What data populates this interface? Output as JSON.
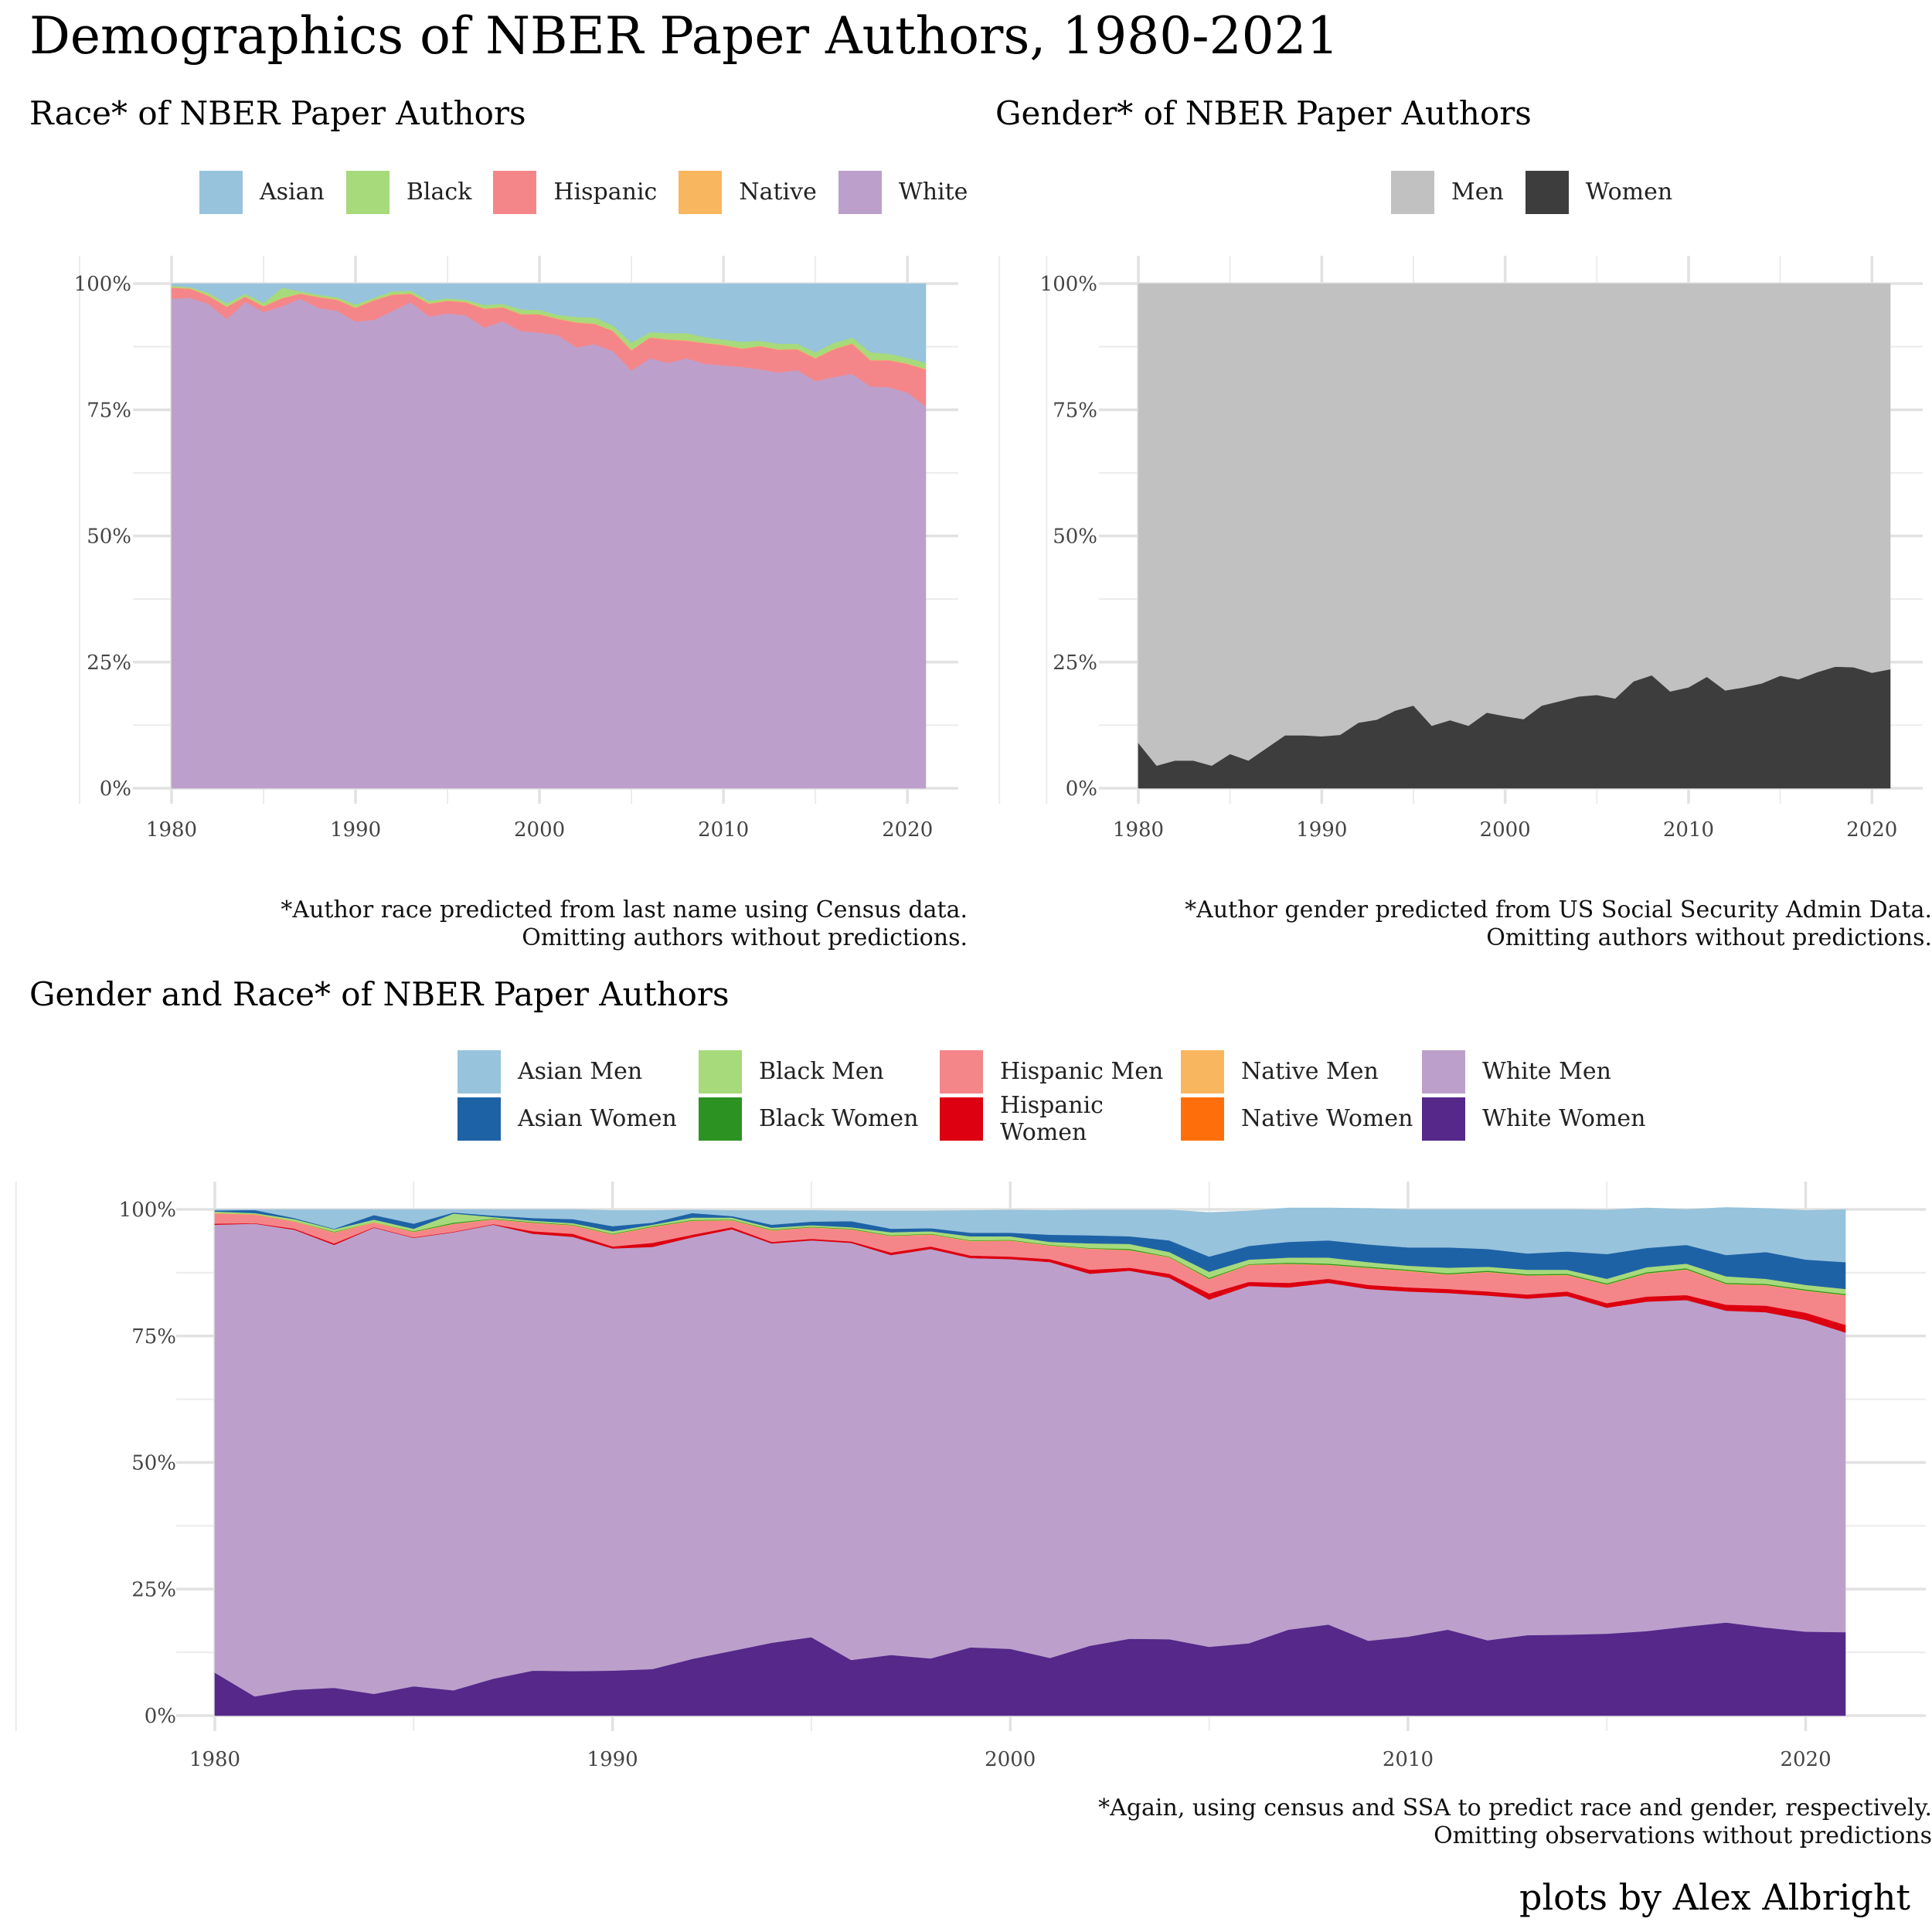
{
  "title": "Demographics of NBER Paper Authors, 1980-2021",
  "byline": "plots by Alex Albright",
  "panels": {
    "race": {
      "title": "Race* of NBER Paper Authors",
      "caption_line1": "*Author race predicted from last name using Census data.",
      "caption_line2": "Omitting authors without predictions."
    },
    "gender": {
      "title": "Gender* of NBER Paper Authors",
      "caption_line1": "*Author gender predicted from US Social Security Admin Data.",
      "caption_line2": "Omitting authors without predictions."
    },
    "combined": {
      "title": "Gender and Race* of NBER Paper Authors",
      "caption_line1": "*Again, using census and SSA to predict race and gender, respectively.",
      "caption_line2": "Omitting observations without predictions"
    }
  },
  "chart_data": [
    {
      "type": "area",
      "stacked": "percent",
      "title": "Race* of NBER Paper Authors",
      "x": [
        1980,
        1981,
        1982,
        1983,
        1984,
        1985,
        1986,
        1987,
        1988,
        1989,
        1990,
        1991,
        1992,
        1993,
        1994,
        1995,
        1996,
        1997,
        1998,
        1999,
        2000,
        2001,
        2002,
        2003,
        2004,
        2005,
        2006,
        2007,
        2008,
        2009,
        2010,
        2011,
        2012,
        2013,
        2014,
        2015,
        2016,
        2017,
        2018,
        2019,
        2020,
        2021
      ],
      "xlim": [
        1980,
        2021
      ],
      "xticks": [
        1980,
        1990,
        2000,
        2010,
        2020
      ],
      "ylim": [
        0,
        100
      ],
      "yticks": [
        0,
        25,
        50,
        75,
        100
      ],
      "ytick_labels": [
        "0%",
        "25%",
        "50%",
        "75%",
        "100%"
      ],
      "legend_position": "top",
      "series": [
        {
          "name": "White",
          "color": "#BCA0CB",
          "values": [
            97.0,
            97.2,
            96.0,
            93.0,
            96.4,
            94.4,
            95.5,
            97.0,
            95.2,
            94.6,
            92.5,
            92.8,
            94.6,
            96.3,
            93.5,
            94.1,
            93.7,
            91.3,
            92.5,
            90.6,
            90.3,
            89.8,
            87.4,
            88.0,
            86.6,
            82.8,
            85.2,
            84.3,
            85.2,
            84.1,
            83.8,
            83.5,
            83.0,
            82.4,
            82.9,
            80.7,
            81.5,
            82.1,
            79.6,
            79.5,
            78.4,
            75.7
          ]
        },
        {
          "name": "Hispanic",
          "color": "#F4868A",
          "values": [
            2.2,
            1.8,
            1.6,
            2.4,
            1.0,
            1.1,
            1.6,
            1.0,
            2.1,
            2.2,
            2.7,
            3.9,
            3.2,
            1.7,
            2.5,
            2.5,
            2.6,
            3.7,
            2.8,
            3.3,
            3.6,
            3.2,
            4.9,
            4.0,
            4.0,
            4.0,
            4.1,
            4.6,
            3.5,
            4.1,
            4.0,
            3.6,
            4.6,
            4.5,
            4.1,
            4.5,
            5.5,
            6.0,
            5.2,
            5.3,
            5.7,
            7.3
          ]
        },
        {
          "name": "Native",
          "color": "#F8B65E",
          "values": [
            0.1,
            0.1,
            0.1,
            0.1,
            0.1,
            0.1,
            0.1,
            0.1,
            0.1,
            0.1,
            0.1,
            0.1,
            0.1,
            0.1,
            0.1,
            0.1,
            0.1,
            0.1,
            0.1,
            0.1,
            0.1,
            0.1,
            0.1,
            0.1,
            0.1,
            0.1,
            0.1,
            0.1,
            0.1,
            0.1,
            0.1,
            0.1,
            0.1,
            0.1,
            0.1,
            0.1,
            0.1,
            0.1,
            0.1,
            0.1,
            0.1,
            0.1
          ]
        },
        {
          "name": "Black",
          "color": "#A6DA7B",
          "values": [
            0.3,
            0.2,
            0.5,
            0.6,
            0.5,
            0.6,
            2.0,
            0.4,
            0.4,
            0.4,
            0.6,
            0.4,
            0.6,
            0.5,
            0.5,
            0.4,
            0.4,
            0.7,
            0.6,
            0.9,
            0.8,
            0.7,
            1.0,
            1.2,
            1.0,
            1.4,
            1.0,
            1.2,
            1.4,
            1.1,
            1.0,
            1.3,
            1.0,
            1.1,
            1.0,
            1.1,
            1.2,
            1.1,
            1.5,
            1.2,
            1.1,
            1.2
          ]
        },
        {
          "name": "Asian",
          "color": "#97C3DC",
          "values": [
            0.4,
            0.7,
            1.8,
            3.9,
            2.0,
            3.8,
            0.8,
            1.5,
            2.2,
            2.7,
            4.1,
            2.8,
            1.5,
            1.4,
            3.4,
            2.9,
            3.2,
            4.2,
            4.0,
            5.1,
            5.2,
            6.2,
            6.6,
            6.7,
            8.3,
            11.7,
            9.6,
            9.8,
            9.8,
            10.6,
            11.1,
            11.5,
            11.3,
            11.9,
            11.9,
            13.6,
            11.7,
            10.7,
            13.6,
            13.9,
            14.7,
            15.7
          ]
        }
      ]
    },
    {
      "type": "area",
      "stacked": "percent",
      "title": "Gender* of NBER Paper Authors",
      "x": [
        1980,
        1981,
        1982,
        1983,
        1984,
        1985,
        1986,
        1987,
        1988,
        1989,
        1990,
        1991,
        1992,
        1993,
        1994,
        1995,
        1996,
        1997,
        1998,
        1999,
        2000,
        2001,
        2002,
        2003,
        2004,
        2005,
        2006,
        2007,
        2008,
        2009,
        2010,
        2011,
        2012,
        2013,
        2014,
        2015,
        2016,
        2017,
        2018,
        2019,
        2020,
        2021
      ],
      "xlim": [
        1980,
        2021
      ],
      "xticks": [
        1980,
        1990,
        2000,
        2010,
        2020
      ],
      "ylim": [
        0,
        100
      ],
      "yticks": [
        0,
        25,
        50,
        75,
        100
      ],
      "ytick_labels": [
        "0%",
        "25%",
        "50%",
        "75%",
        "100%"
      ],
      "legend_position": "top",
      "series": [
        {
          "name": "Women",
          "color": "#3D3D3D",
          "values": [
            9.0,
            4.5,
            5.5,
            5.5,
            4.5,
            6.8,
            5.5,
            8.0,
            10.5,
            10.5,
            10.3,
            10.6,
            13.0,
            13.6,
            15.4,
            16.4,
            12.4,
            13.5,
            12.4,
            15.0,
            14.3,
            13.7,
            16.4,
            17.3,
            18.2,
            18.5,
            17.8,
            21.2,
            22.4,
            19.2,
            20.0,
            22.1,
            19.4,
            20.0,
            20.8,
            22.3,
            21.6,
            23.0,
            24.1,
            24.0,
            22.9,
            23.6
          ]
        },
        {
          "name": "Men",
          "color": "#C1C1C1",
          "values": [
            91.0,
            95.5,
            94.5,
            94.5,
            95.5,
            93.2,
            94.5,
            92.0,
            89.5,
            89.5,
            89.7,
            89.4,
            87.0,
            86.4,
            84.6,
            83.6,
            87.6,
            86.5,
            87.6,
            85.0,
            85.7,
            86.3,
            83.6,
            82.7,
            81.8,
            81.5,
            82.2,
            78.8,
            77.6,
            80.8,
            80.0,
            77.9,
            80.6,
            80.0,
            79.2,
            77.7,
            78.4,
            77.0,
            75.9,
            76.0,
            77.1,
            76.4
          ]
        }
      ]
    },
    {
      "type": "area",
      "stacked": "percent",
      "title": "Gender and Race* of NBER Paper Authors",
      "x": [
        1980,
        1981,
        1982,
        1983,
        1984,
        1985,
        1986,
        1987,
        1988,
        1989,
        1990,
        1991,
        1992,
        1993,
        1994,
        1995,
        1996,
        1997,
        1998,
        1999,
        2000,
        2001,
        2002,
        2003,
        2004,
        2005,
        2006,
        2007,
        2008,
        2009,
        2010,
        2011,
        2012,
        2013,
        2014,
        2015,
        2016,
        2017,
        2018,
        2019,
        2020,
        2021
      ],
      "xlim": [
        1980,
        2021
      ],
      "xticks": [
        1980,
        1990,
        2000,
        2010,
        2020
      ],
      "ylim": [
        0,
        100
      ],
      "yticks": [
        0,
        25,
        50,
        75,
        100
      ],
      "ytick_labels": [
        "0%",
        "25%",
        "50%",
        "75%",
        "100%"
      ],
      "legend_position": "top",
      "series": [
        {
          "name": "White Women",
          "color": "#55288A",
          "values": [
            8.5,
            3.8,
            5.1,
            5.5,
            4.3,
            5.8,
            5.0,
            7.3,
            8.9,
            8.8,
            8.9,
            9.2,
            11.2,
            12.8,
            14.4,
            15.5,
            11.0,
            12.0,
            11.3,
            13.5,
            13.2,
            11.4,
            13.8,
            15.2,
            15.1,
            13.6,
            14.3,
            17.0,
            18.0,
            14.8,
            15.6,
            17.0,
            14.9,
            15.9,
            16.0,
            16.2,
            16.7,
            17.6,
            18.4,
            17.4,
            16.6,
            16.5
          ]
        },
        {
          "name": "White Men",
          "color": "#BCA0CB",
          "values": [
            88.5,
            93.4,
            90.9,
            87.5,
            92.1,
            88.6,
            90.5,
            89.7,
            86.3,
            85.8,
            83.4,
            83.4,
            83.3,
            83.3,
            78.9,
            78.4,
            82.4,
            79.0,
            80.9,
            76.9,
            77.0,
            78.2,
            73.5,
            72.7,
            71.4,
            68.6,
            70.6,
            67.6,
            67.5,
            69.5,
            68.2,
            66.5,
            68.1,
            66.5,
            66.9,
            64.4,
            65.1,
            64.5,
            61.6,
            62.3,
            61.6,
            59.2
          ]
        },
        {
          "name": "Hispanic Women",
          "color": "#DC0010",
          "values": [
            0.2,
            0.1,
            0.2,
            0.3,
            0.1,
            0.1,
            0.1,
            0.1,
            0.5,
            0.6,
            0.4,
            0.8,
            0.5,
            0.4,
            0.3,
            0.3,
            0.3,
            0.5,
            0.5,
            0.5,
            0.5,
            0.6,
            0.8,
            0.6,
            0.8,
            1.2,
            0.8,
            0.9,
            0.8,
            0.8,
            0.8,
            0.8,
            0.8,
            0.8,
            0.9,
            0.9,
            1.0,
            1.0,
            1.2,
            1.3,
            1.4,
            1.5
          ]
        },
        {
          "name": "Hispanic Men",
          "color": "#F4868A",
          "values": [
            2.0,
            1.7,
            1.4,
            2.1,
            0.9,
            1.0,
            1.5,
            0.9,
            1.6,
            1.6,
            2.3,
            3.1,
            2.7,
            1.3,
            2.2,
            2.2,
            2.3,
            3.2,
            2.3,
            2.8,
            3.1,
            2.6,
            4.1,
            3.4,
            3.2,
            2.8,
            3.3,
            3.7,
            2.7,
            3.3,
            3.2,
            2.8,
            3.8,
            3.7,
            3.2,
            3.6,
            4.5,
            5.0,
            4.0,
            4.0,
            4.3,
            5.8
          ]
        },
        {
          "name": "Native Women",
          "color": "#FE6E0B",
          "values": [
            0.0,
            0.0,
            0.0,
            0.0,
            0.0,
            0.0,
            0.0,
            0.0,
            0.0,
            0.0,
            0.0,
            0.0,
            0.0,
            0.0,
            0.0,
            0.0,
            0.0,
            0.0,
            0.0,
            0.0,
            0.0,
            0.0,
            0.0,
            0.0,
            0.0,
            0.0,
            0.0,
            0.0,
            0.0,
            0.0,
            0.0,
            0.0,
            0.0,
            0.0,
            0.0,
            0.0,
            0.0,
            0.0,
            0.0,
            0.0,
            0.0,
            0.0
          ]
        },
        {
          "name": "Native Men",
          "color": "#F8B65E",
          "values": [
            0.1,
            0.1,
            0.1,
            0.1,
            0.1,
            0.1,
            0.1,
            0.1,
            0.1,
            0.1,
            0.1,
            0.1,
            0.1,
            0.1,
            0.1,
            0.1,
            0.1,
            0.1,
            0.1,
            0.1,
            0.1,
            0.1,
            0.1,
            0.1,
            0.1,
            0.1,
            0.1,
            0.1,
            0.1,
            0.1,
            0.1,
            0.1,
            0.1,
            0.1,
            0.1,
            0.1,
            0.1,
            0.1,
            0.1,
            0.1,
            0.1,
            0.1
          ]
        },
        {
          "name": "Black Women",
          "color": "#2C9323",
          "values": [
            0.0,
            0.0,
            0.0,
            0.1,
            0.0,
            0.1,
            0.2,
            0.1,
            0.1,
            0.1,
            0.1,
            0.1,
            0.1,
            0.1,
            0.1,
            0.1,
            0.1,
            0.1,
            0.1,
            0.1,
            0.1,
            0.1,
            0.1,
            0.2,
            0.1,
            0.2,
            0.1,
            0.2,
            0.2,
            0.2,
            0.2,
            0.2,
            0.2,
            0.2,
            0.2,
            0.2,
            0.2,
            0.2,
            0.2,
            0.2,
            0.2,
            0.2
          ]
        },
        {
          "name": "Black Men",
          "color": "#A6DA7B",
          "values": [
            0.3,
            0.2,
            0.4,
            0.5,
            0.5,
            0.5,
            1.8,
            0.3,
            0.3,
            0.3,
            0.5,
            0.3,
            0.5,
            0.4,
            0.4,
            0.3,
            0.3,
            0.6,
            0.5,
            0.8,
            0.7,
            0.6,
            0.9,
            1.0,
            0.9,
            1.2,
            0.9,
            1.0,
            1.2,
            0.9,
            0.8,
            1.1,
            0.8,
            0.9,
            0.8,
            0.9,
            1.0,
            0.9,
            1.3,
            1.0,
            0.9,
            1.0
          ]
        },
        {
          "name": "Asian Women",
          "color": "#1E62A6",
          "values": [
            0.2,
            0.6,
            0.2,
            0.1,
            0.9,
            1.0,
            0.2,
            0.3,
            0.5,
            0.8,
            1.0,
            0.4,
            0.9,
            0.3,
            0.6,
            0.7,
            1.2,
            0.7,
            0.6,
            0.7,
            0.7,
            1.4,
            1.6,
            1.5,
            2.3,
            3.0,
            2.7,
            3.1,
            3.4,
            3.5,
            3.6,
            4.0,
            3.5,
            3.2,
            3.6,
            4.9,
            3.8,
            3.7,
            4.2,
            5.3,
            5.0,
            5.3
          ]
        },
        {
          "name": "Asian Men",
          "color": "#97C3DC",
          "values": [
            0.2,
            0.1,
            1.7,
            3.8,
            1.1,
            2.8,
            0.6,
            1.2,
            1.7,
            1.9,
            3.1,
            2.4,
            0.6,
            1.1,
            2.8,
            2.2,
            2.0,
            3.5,
            3.4,
            4.4,
            4.5,
            4.8,
            5.0,
            5.2,
            6.0,
            8.7,
            6.9,
            6.7,
            6.4,
            7.1,
            7.5,
            7.5,
            7.8,
            8.7,
            8.3,
            8.7,
            7.9,
            7.0,
            9.4,
            8.6,
            9.7,
            10.4
          ]
        }
      ]
    }
  ]
}
